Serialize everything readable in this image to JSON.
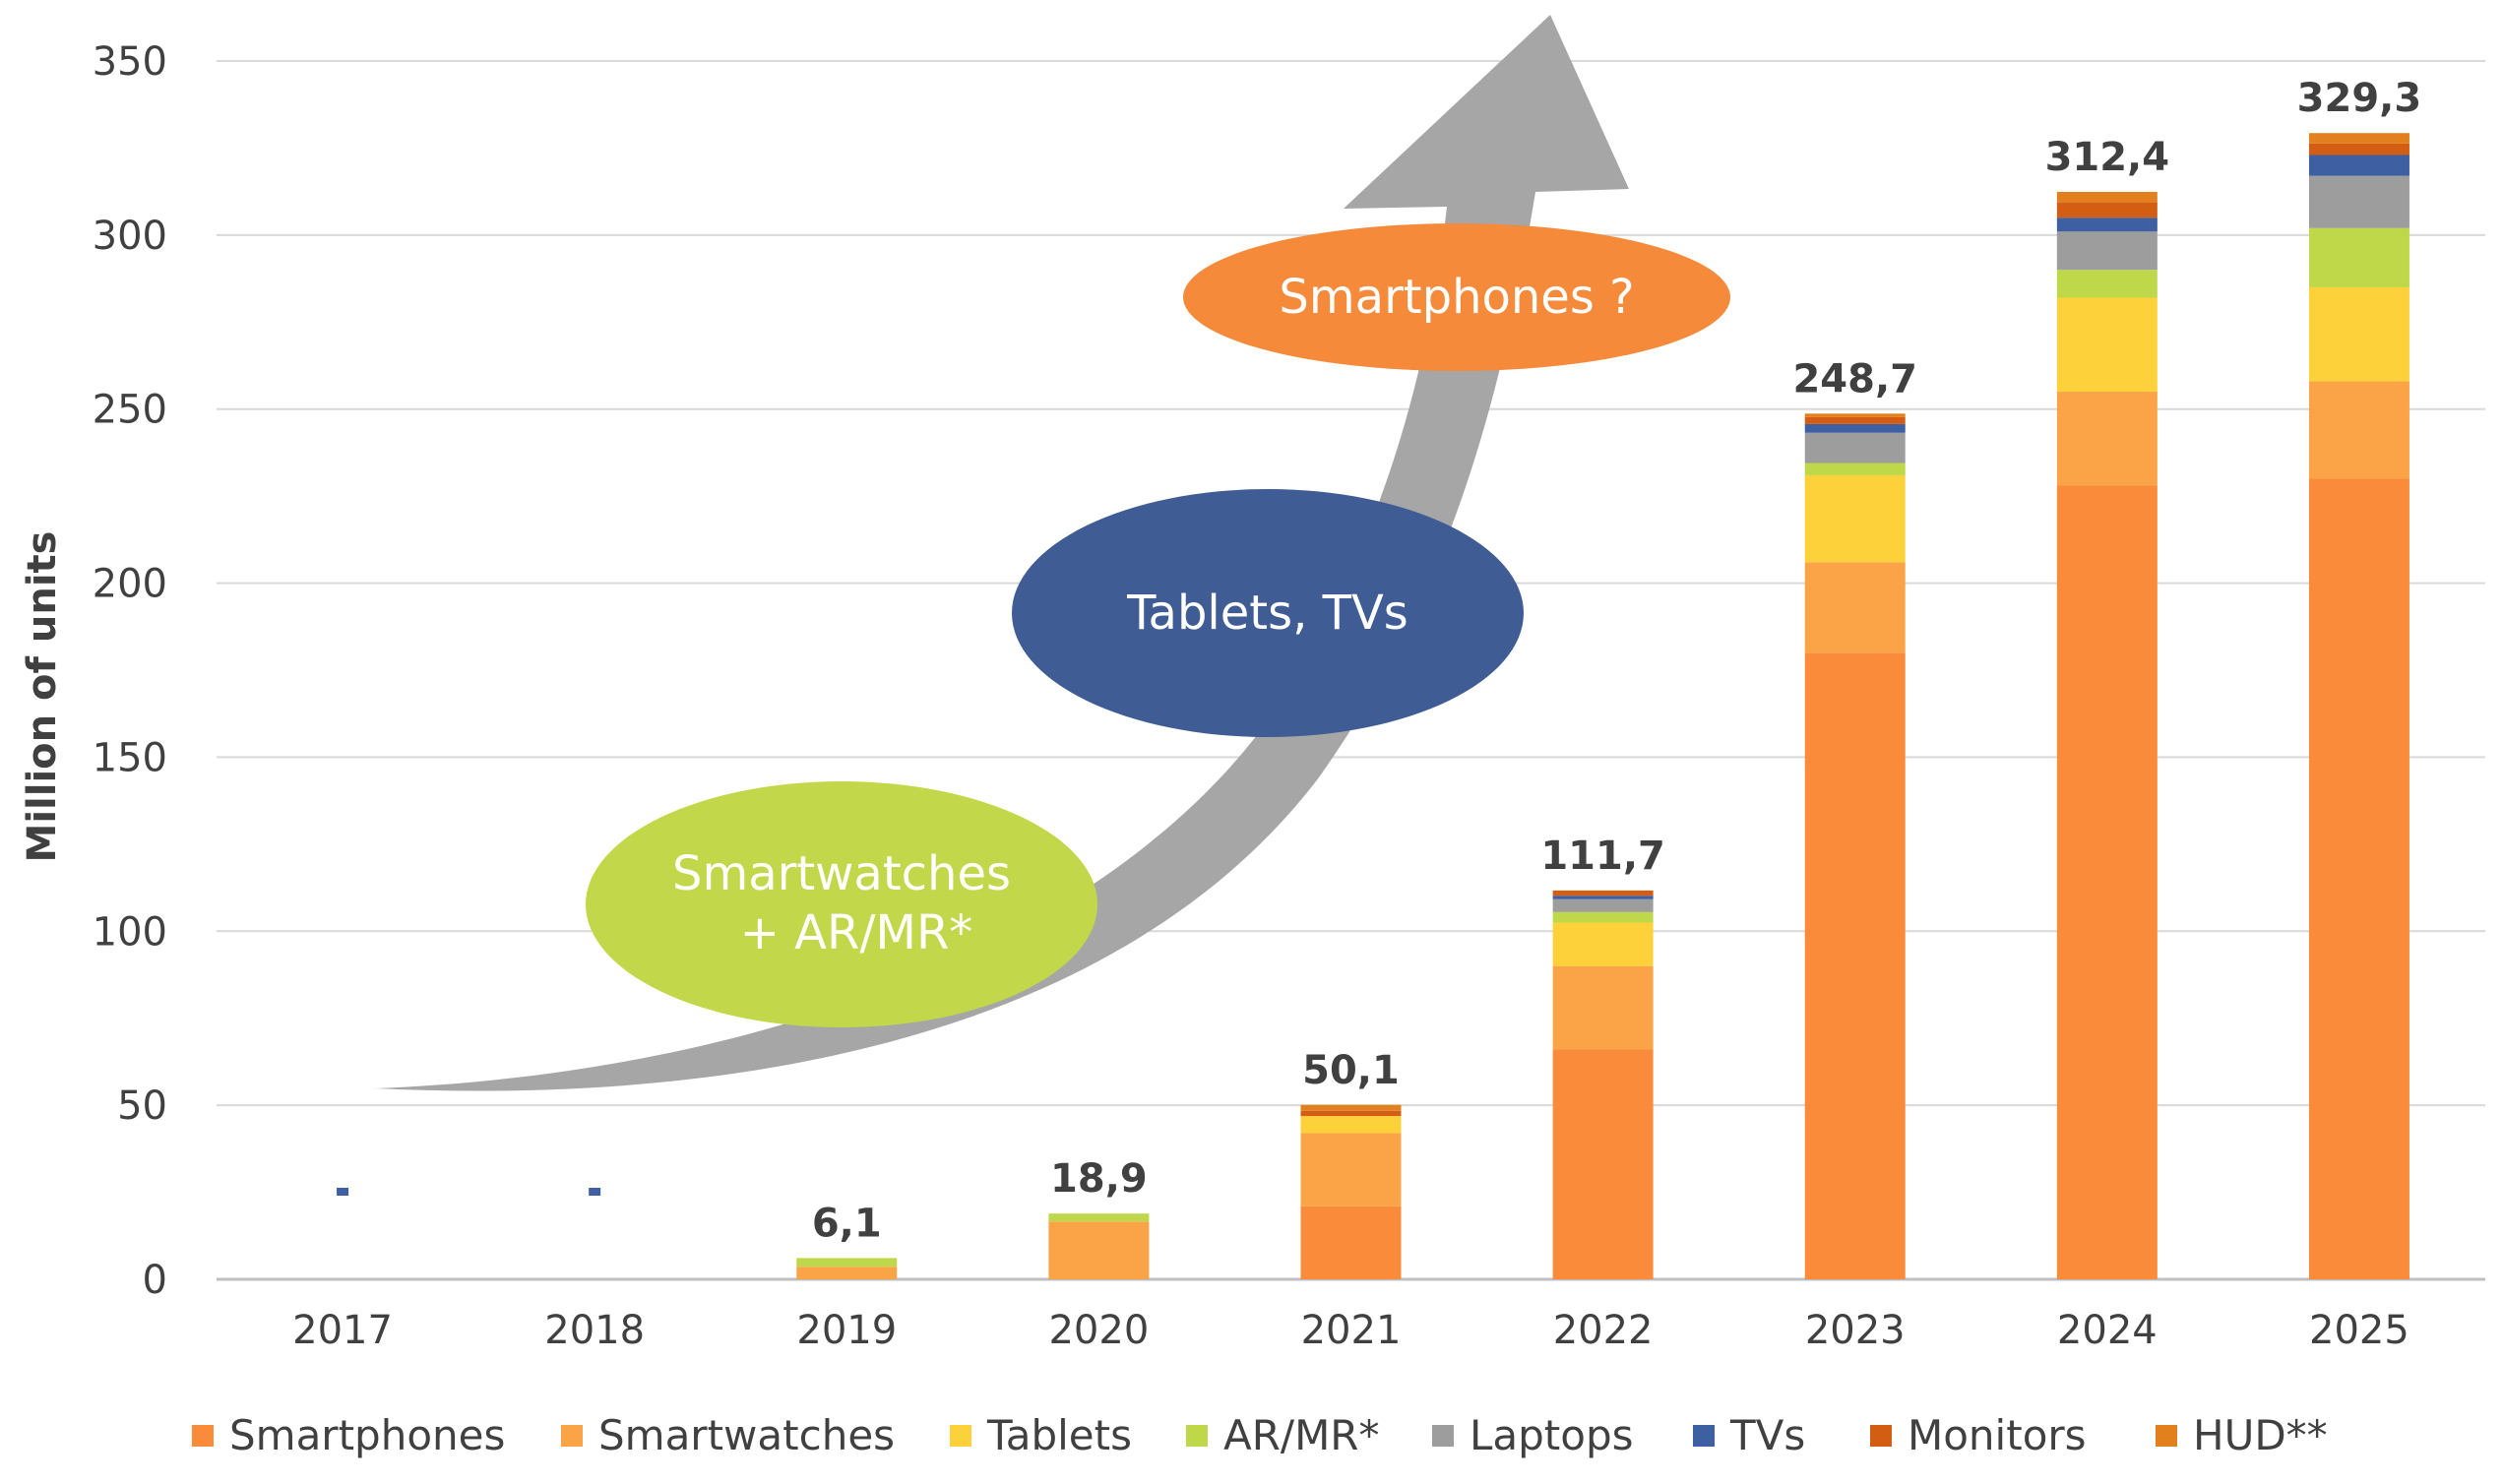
{
  "chart_data": {
    "type": "bar",
    "stacked": true,
    "ylabel": "Million of units",
    "xlabel": "",
    "ylim": [
      0,
      350
    ],
    "yticks": [
      0,
      50,
      100,
      150,
      200,
      250,
      300,
      350
    ],
    "grid": true,
    "legend_position": "bottom",
    "categories": [
      "2017",
      "2018",
      "2019",
      "2020",
      "2021",
      "2022",
      "2023",
      "2024",
      "2025"
    ],
    "totals": [
      "-",
      "-",
      "6,1",
      "18,9",
      "50,1",
      "111,7",
      "248,7",
      "312,4",
      "329,3"
    ],
    "series": [
      {
        "name": "Smartphones",
        "color": "#F98B3A",
        "values": [
          0,
          0,
          0,
          0,
          21,
          66,
          180,
          228,
          230
        ]
      },
      {
        "name": "Smartwatches",
        "color": "#FAA447",
        "values": [
          0,
          0,
          3.6,
          16.6,
          21,
          24,
          26,
          27,
          28
        ]
      },
      {
        "name": "Tablets",
        "color": "#FCD13A",
        "values": [
          0,
          0,
          0,
          0,
          4.9,
          12.5,
          25,
          27,
          27
        ]
      },
      {
        "name": "AR/MR*",
        "color": "#BFD849",
        "values": [
          0,
          0,
          2.5,
          2.3,
          0,
          3,
          3.5,
          8,
          17
        ]
      },
      {
        "name": "Laptops",
        "color": "#9D9D9D",
        "values": [
          0,
          0,
          0,
          0,
          0,
          3.7,
          8.7,
          11,
          15
        ]
      },
      {
        "name": "TVs",
        "color": "#3F5FA3",
        "values": [
          0,
          0,
          0,
          0,
          0,
          1,
          2.5,
          4,
          6
        ]
      },
      {
        "name": "Monitors",
        "color": "#D35E13",
        "values": [
          0,
          0,
          0,
          0,
          1.5,
          1.5,
          2,
          4.4,
          3.3
        ]
      },
      {
        "name": "HUD**",
        "color": "#E1801D",
        "values": [
          0,
          0,
          0,
          0,
          1.7,
          0,
          1,
          3,
          3
        ]
      }
    ],
    "annotations": [
      {
        "text": "Smartwatches\n+ AR/MR*",
        "color": "#C2D84A"
      },
      {
        "text": "Tablets, TVs",
        "color": "#3F5C94"
      },
      {
        "text": "Smartphones ?",
        "color": "#F58A3B"
      }
    ],
    "arrow_color": "#A6A6A6"
  }
}
